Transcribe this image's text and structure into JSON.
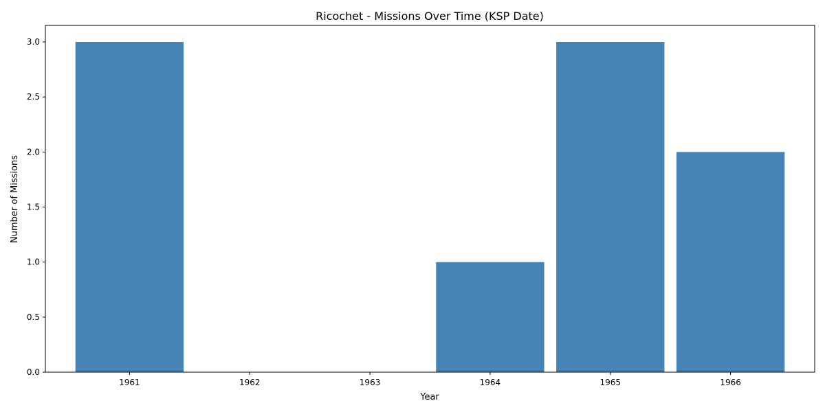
{
  "chart_data": {
    "type": "bar",
    "title": "Ricochet - Missions Over Time (KSP Date)",
    "xlabel": "Year",
    "ylabel": "Number of Missions",
    "categories": [
      "1961",
      "1962",
      "1963",
      "1964",
      "1965",
      "1966"
    ],
    "x": [
      1961,
      1962,
      1963,
      1964,
      1965,
      1966
    ],
    "values": [
      3,
      0,
      0,
      1,
      3,
      2
    ],
    "ylim": [
      0,
      3.15
    ],
    "xlim": [
      1960.3,
      1966.7
    ],
    "yticks": [
      0,
      0.5,
      1,
      1.5,
      2,
      2.5,
      3
    ],
    "ytick_labels": [
      "0.0",
      "0.5",
      "1.0",
      "1.5",
      "2.0",
      "2.5",
      "3.0"
    ],
    "bar_width_years": 0.9,
    "grid": false,
    "bar_color": "#4682b4"
  }
}
